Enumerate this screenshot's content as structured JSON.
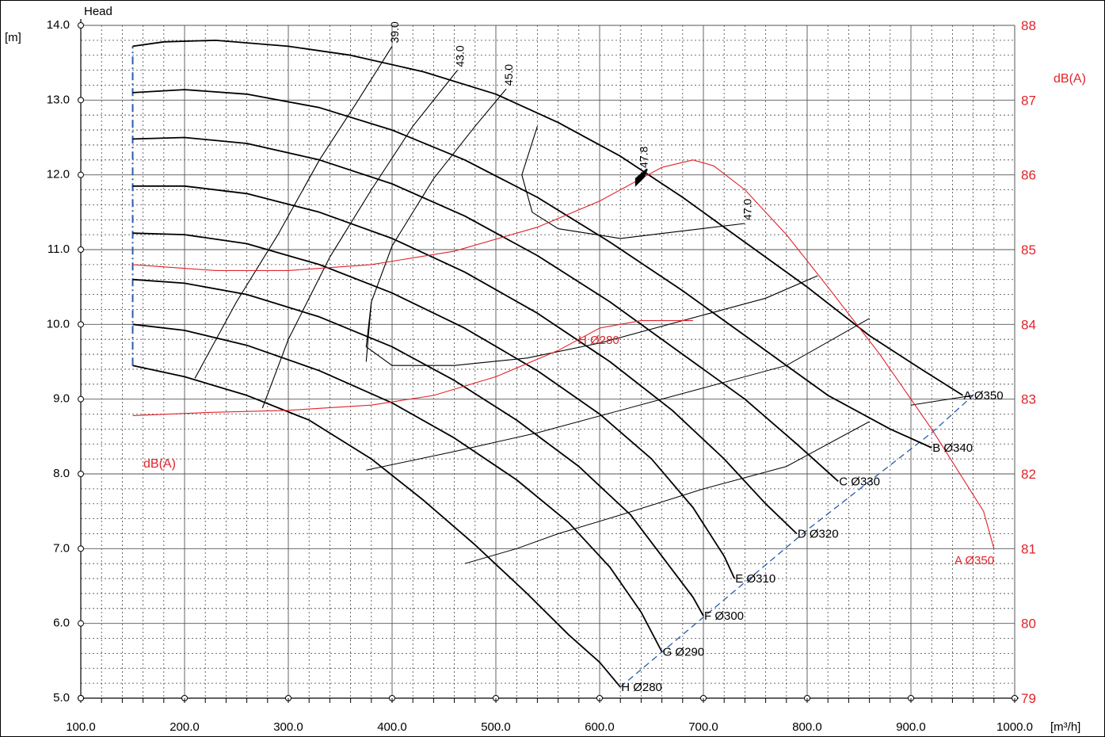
{
  "chart_data": {
    "type": "line",
    "ylabel_title": "Head",
    "ylabel_unit": "[m]",
    "y2label": "dB(A)",
    "y2label_inner": "dB(A)",
    "xlabel_unit": "[m³/h]",
    "xlim": [
      100,
      1000
    ],
    "ylim": [
      5,
      14
    ],
    "y2lim": [
      79,
      88
    ],
    "grid": true,
    "x_ticks": [
      "100.0",
      "200.0",
      "300.0",
      "400.0",
      "500.0",
      "600.0",
      "700.0",
      "800.0",
      "900.0",
      "1000.0"
    ],
    "y_ticks": [
      "5.0",
      "6.0",
      "7.0",
      "8.0",
      "9.0",
      "10.0",
      "11.0",
      "12.0",
      "13.0",
      "14.0"
    ],
    "y2_ticks": [
      "79",
      "80",
      "81",
      "82",
      "83",
      "84",
      "85",
      "86",
      "87",
      "88"
    ],
    "head_curves": [
      {
        "name": "A Ø350",
        "points": [
          [
            150,
            13.72
          ],
          [
            180,
            13.78
          ],
          [
            230,
            13.8
          ],
          [
            300,
            13.72
          ],
          [
            360,
            13.6
          ],
          [
            430,
            13.38
          ],
          [
            500,
            13.08
          ],
          [
            560,
            12.7
          ],
          [
            620,
            12.25
          ],
          [
            680,
            11.7
          ],
          [
            740,
            11.1
          ],
          [
            800,
            10.5
          ],
          [
            860,
            9.85
          ],
          [
            910,
            9.4
          ],
          [
            950,
            9.05
          ]
        ]
      },
      {
        "name": "B Ø340",
        "points": [
          [
            150,
            13.1
          ],
          [
            200,
            13.14
          ],
          [
            260,
            13.08
          ],
          [
            330,
            12.9
          ],
          [
            400,
            12.6
          ],
          [
            470,
            12.2
          ],
          [
            540,
            11.7
          ],
          [
            610,
            11.1
          ],
          [
            680,
            10.45
          ],
          [
            750,
            9.75
          ],
          [
            820,
            9.05
          ],
          [
            880,
            8.6
          ],
          [
            920,
            8.35
          ]
        ]
      },
      {
        "name": "C Ø330",
        "points": [
          [
            150,
            12.48
          ],
          [
            200,
            12.5
          ],
          [
            260,
            12.42
          ],
          [
            330,
            12.2
          ],
          [
            400,
            11.88
          ],
          [
            470,
            11.45
          ],
          [
            540,
            10.92
          ],
          [
            610,
            10.3
          ],
          [
            680,
            9.6
          ],
          [
            740,
            9.0
          ],
          [
            790,
            8.4
          ],
          [
            830,
            7.9
          ]
        ]
      },
      {
        "name": "D Ø320",
        "points": [
          [
            150,
            11.85
          ],
          [
            200,
            11.85
          ],
          [
            260,
            11.75
          ],
          [
            330,
            11.5
          ],
          [
            400,
            11.15
          ],
          [
            470,
            10.7
          ],
          [
            540,
            10.15
          ],
          [
            610,
            9.5
          ],
          [
            670,
            8.85
          ],
          [
            720,
            8.2
          ],
          [
            760,
            7.6
          ],
          [
            790,
            7.2
          ]
        ]
      },
      {
        "name": "E Ø310",
        "points": [
          [
            150,
            11.22
          ],
          [
            200,
            11.2
          ],
          [
            260,
            11.08
          ],
          [
            330,
            10.8
          ],
          [
            400,
            10.42
          ],
          [
            470,
            9.95
          ],
          [
            540,
            9.38
          ],
          [
            600,
            8.8
          ],
          [
            650,
            8.2
          ],
          [
            690,
            7.55
          ],
          [
            720,
            6.9
          ],
          [
            730,
            6.6
          ]
        ]
      },
      {
        "name": "F Ø300",
        "points": [
          [
            150,
            10.6
          ],
          [
            200,
            10.55
          ],
          [
            260,
            10.4
          ],
          [
            330,
            10.1
          ],
          [
            400,
            9.7
          ],
          [
            460,
            9.25
          ],
          [
            520,
            8.72
          ],
          [
            580,
            8.1
          ],
          [
            630,
            7.45
          ],
          [
            660,
            6.9
          ],
          [
            690,
            6.35
          ],
          [
            700,
            6.1
          ]
        ]
      },
      {
        "name": "G Ø290",
        "points": [
          [
            150,
            10.0
          ],
          [
            200,
            9.92
          ],
          [
            260,
            9.72
          ],
          [
            330,
            9.38
          ],
          [
            400,
            8.95
          ],
          [
            460,
            8.48
          ],
          [
            520,
            7.92
          ],
          [
            570,
            7.35
          ],
          [
            610,
            6.75
          ],
          [
            640,
            6.15
          ],
          [
            660,
            5.62
          ]
        ]
      },
      {
        "name": "H Ø280",
        "points": [
          [
            150,
            9.45
          ],
          [
            200,
            9.3
          ],
          [
            260,
            9.05
          ],
          [
            320,
            8.72
          ],
          [
            380,
            8.2
          ],
          [
            430,
            7.65
          ],
          [
            480,
            7.05
          ],
          [
            530,
            6.4
          ],
          [
            570,
            5.85
          ],
          [
            600,
            5.48
          ],
          [
            620,
            5.15
          ]
        ]
      }
    ],
    "efficiency_curves": [
      {
        "name": "39.0",
        "points": [
          [
            210,
            9.28
          ],
          [
            250,
            10.3
          ],
          [
            290,
            11.2
          ],
          [
            330,
            12.2
          ],
          [
            365,
            12.95
          ],
          [
            400,
            13.72
          ]
        ]
      },
      {
        "name": "43.0",
        "points": [
          [
            275,
            8.88
          ],
          [
            300,
            9.8
          ],
          [
            340,
            10.9
          ],
          [
            380,
            11.8
          ],
          [
            420,
            12.65
          ],
          [
            463,
            13.4
          ]
        ]
      },
      {
        "name": "45.0",
        "points": [
          [
            375,
            9.5
          ],
          [
            380,
            10.3
          ],
          [
            400,
            11.05
          ],
          [
            440,
            11.95
          ],
          [
            480,
            12.65
          ],
          [
            510,
            13.15
          ]
        ]
      },
      {
        "name": "47.0",
        "points": [
          [
            540,
            12.65
          ],
          [
            525,
            12.0
          ],
          [
            535,
            11.5
          ],
          [
            560,
            11.28
          ],
          [
            620,
            11.15
          ],
          [
            680,
            11.25
          ],
          [
            740,
            11.35
          ]
        ]
      },
      {
        "name": "47.8",
        "points": [
          [
            640,
            12.05
          ]
        ]
      }
    ],
    "efficiency_loop": {
      "name": "45.0",
      "points": [
        [
          380,
          10.3
        ],
        [
          375,
          9.7
        ],
        [
          400,
          9.45
        ],
        [
          460,
          9.45
        ],
        [
          530,
          9.55
        ],
        [
          600,
          9.75
        ],
        [
          680,
          10.05
        ],
        [
          760,
          10.35
        ],
        [
          810,
          10.65
        ]
      ]
    },
    "iso_lines": [
      [
        [
          375,
          8.05
        ],
        [
          460,
          8.3
        ],
        [
          540,
          8.55
        ],
        [
          620,
          8.85
        ],
        [
          700,
          9.15
        ],
        [
          780,
          9.45
        ],
        [
          860,
          10.08
        ]
      ],
      [
        [
          470,
          6.8
        ],
        [
          520,
          7.0
        ],
        [
          560,
          7.2
        ],
        [
          620,
          7.45
        ],
        [
          700,
          7.8
        ],
        [
          780,
          8.1
        ],
        [
          860,
          8.7
        ]
      ],
      [
        [
          900,
          8.92
        ],
        [
          960,
          9.05
        ]
      ]
    ],
    "noise_curves": [
      {
        "name": "A Ø350",
        "points": [
          [
            150,
            84.8
          ],
          [
            230,
            84.72
          ],
          [
            300,
            84.72
          ],
          [
            380,
            84.8
          ],
          [
            460,
            84.98
          ],
          [
            540,
            85.3
          ],
          [
            600,
            85.65
          ],
          [
            660,
            86.1
          ],
          [
            690,
            86.2
          ],
          [
            710,
            86.12
          ],
          [
            740,
            85.8
          ],
          [
            780,
            85.2
          ],
          [
            820,
            84.5
          ],
          [
            870,
            83.6
          ],
          [
            920,
            82.6
          ],
          [
            970,
            81.5
          ],
          [
            980,
            81.0
          ]
        ]
      },
      {
        "name": "H Ø280",
        "points": [
          [
            150,
            82.78
          ],
          [
            220,
            82.82
          ],
          [
            300,
            82.85
          ],
          [
            380,
            82.92
          ],
          [
            440,
            83.05
          ],
          [
            500,
            83.3
          ],
          [
            560,
            83.65
          ],
          [
            600,
            83.95
          ],
          [
            640,
            84.05
          ],
          [
            690,
            84.05
          ]
        ]
      }
    ],
    "system_curve": [
      [
        620,
        5.15
      ],
      [
        680,
        5.85
      ],
      [
        740,
        6.55
      ],
      [
        800,
        7.25
      ],
      [
        860,
        7.9
      ],
      [
        920,
        8.55
      ],
      [
        960,
        9.05
      ]
    ],
    "min_flow_line": {
      "x": 150,
      "y_range": [
        9.45,
        13.72
      ]
    },
    "bep_marker": {
      "x": 635,
      "y": 11.95
    },
    "red_labels": {
      "noise_top": "A Ø350",
      "noise_bottom": "H Ø280"
    }
  }
}
